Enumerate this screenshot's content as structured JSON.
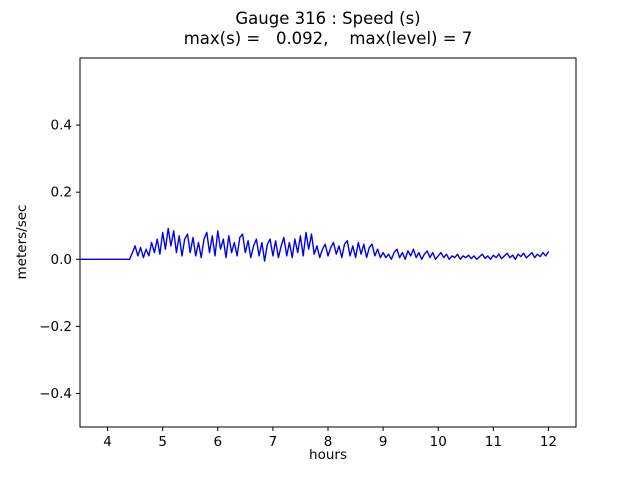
{
  "chart_data": {
    "type": "line",
    "title": "Gauge 316 : Speed (s)",
    "subtitle": "max(s) =   0.092,    max(level) = 7",
    "xlabel": "hours",
    "ylabel": "meters/sec",
    "xlim": [
      3.5,
      12.5
    ],
    "ylim": [
      -0.5,
      0.6
    ],
    "grid": false,
    "legend": "none",
    "line_color": "#0000ee",
    "axis_color": "#000000",
    "xticks": {
      "values": [
        4,
        5,
        6,
        7,
        8,
        9,
        10,
        11,
        12
      ],
      "labels": [
        "4",
        "5",
        "6",
        "7",
        "8",
        "9",
        "10",
        "11",
        "12"
      ]
    },
    "yticks": {
      "values": [
        -0.4,
        -0.2,
        0.0,
        0.2,
        0.4
      ],
      "labels": [
        "−0.4",
        "−0.2",
        "0.0",
        "0.2",
        "0.4"
      ]
    },
    "stats": {
      "max_s": 0.092,
      "max_level": 7
    },
    "series": [
      {
        "name": "speed",
        "x_start": 3.5,
        "x_step": 0.05,
        "values": [
          0,
          0,
          0,
          0,
          0,
          0,
          0,
          0,
          0,
          0,
          0,
          0,
          0,
          0,
          0,
          0,
          0,
          0,
          0,
          0.02,
          0.04,
          0.01,
          0.035,
          0.005,
          0.03,
          0.01,
          0.05,
          0.02,
          0.06,
          0.015,
          0.08,
          0.03,
          0.092,
          0.04,
          0.085,
          0.02,
          0.07,
          0.01,
          0.06,
          0.075,
          0.02,
          0.065,
          0.01,
          0.05,
          0.005,
          0.06,
          0.08,
          0.02,
          0.07,
          0.01,
          0.085,
          0.03,
          0.06,
          0.005,
          0.07,
          0.02,
          0.05,
          0.01,
          0.065,
          0.075,
          0.02,
          0.055,
          0.005,
          0.04,
          0.06,
          0.01,
          0.05,
          -0.005,
          0.045,
          0.06,
          0.01,
          0.055,
          0.005,
          0.04,
          0.065,
          0.01,
          0.05,
          0.005,
          0.06,
          0.02,
          0.07,
          0.01,
          0.08,
          0.03,
          0.075,
          0.015,
          0.04,
          0.005,
          0.03,
          0.045,
          0.01,
          0.035,
          0.05,
          0.015,
          0.04,
          0.005,
          0.045,
          0.055,
          0.01,
          0.04,
          0.005,
          0.05,
          0.015,
          0.045,
          0.005,
          0.035,
          0.045,
          0.01,
          0.03,
          0.005,
          0.02,
          0.005,
          0.015,
          0,
          0.02,
          0.03,
          0.005,
          0.02,
          0,
          0.025,
          0.01,
          0.03,
          0.005,
          0.02,
          0,
          0.015,
          0.025,
          0.005,
          0.02,
          0,
          0.01,
          0.02,
          0.005,
          0.015,
          0,
          0.01,
          0.005,
          0.015,
          0,
          0.01,
          0.005,
          0.012,
          0.002,
          0.01,
          0,
          0.008,
          0.015,
          0.003,
          0.01,
          0,
          0.012,
          0.005,
          0.015,
          0.002,
          0.01,
          0.018,
          0.005,
          0.012,
          0,
          0.015,
          0.008,
          0.018,
          0.004,
          0.012,
          0.02,
          0.005,
          0.015,
          0.008,
          0.02,
          0.01,
          0.022
        ]
      }
    ]
  }
}
